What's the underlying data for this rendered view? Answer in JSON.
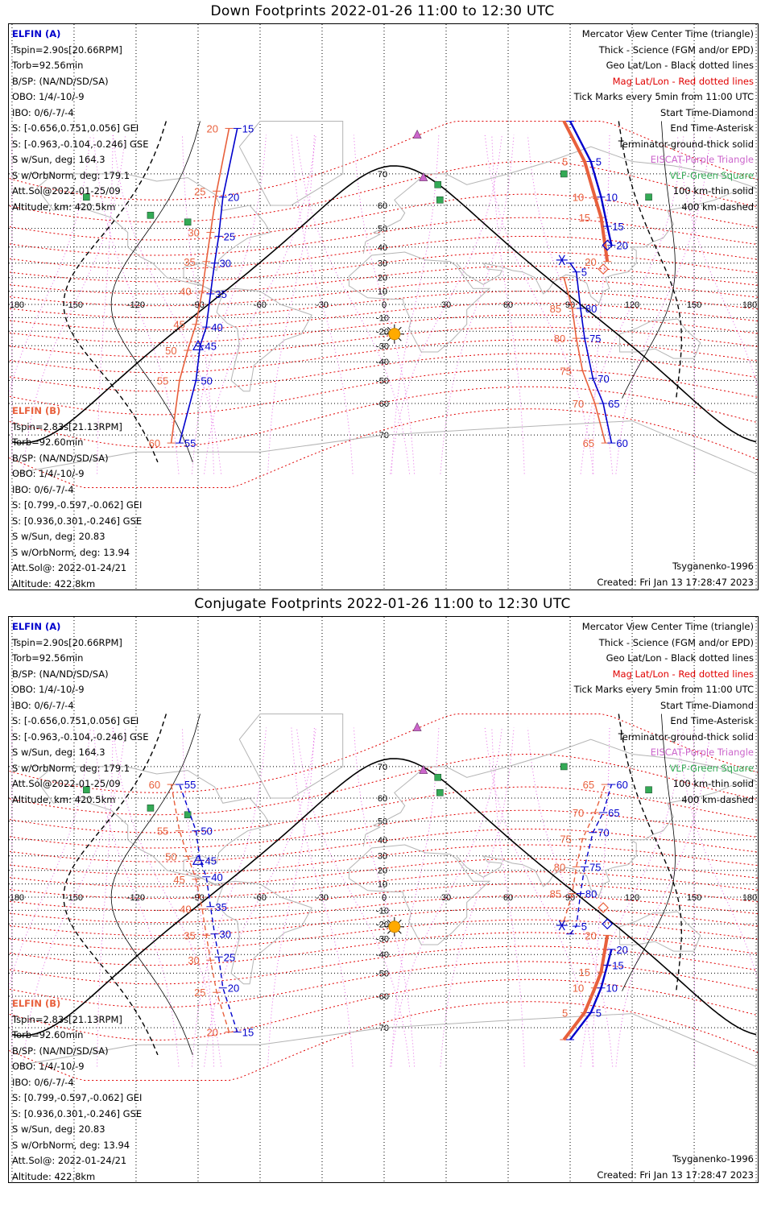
{
  "panels": [
    {
      "title": "Down Footprints 2022-01-26 11:00 to 12:30 UTC",
      "mode": "down"
    },
    {
      "title": "Conjugate Footprints 2022-01-26 11:00 to 12:30 UTC",
      "mode": "conjugate"
    }
  ],
  "elfin_a": {
    "name": "ELFIN (A)",
    "color": "#0000cc",
    "lines": [
      "Tspin=2.90s[20.66RPM]",
      "Torb=92.56min",
      "B/SP: (NA/ND/SD/SA)",
      "OBO: 1/4/-10/-9",
      "IBO: 0/6/-7/-4",
      "S: [-0.656,0.751,0.056] GEI",
      "S: [-0.963,-0.104,-0.246] GSE",
      "S w/Sun, deg: 164.3",
      "S w/OrbNorm, deg: 179.1",
      "Att.Sol@2022-01-25/09",
      "Altitude, km: 420.5km"
    ]
  },
  "elfin_b": {
    "name": "ELFIN (B)",
    "color": "#e8603c",
    "lines": [
      "Tspin=2.83s[21.13RPM]",
      "Torb=92.60min",
      "B/SP: (NA/ND/SD/SA)",
      "OBO: 1/4/-10/-9",
      "IBO: 0/6/-7/-4",
      "S: [0.799,-0.597,-0.062] GEI",
      "S: [0.936,0.301,-0.246] GSE",
      "S w/Sun, deg: 20.83",
      "S w/OrbNorm, deg: 13.94",
      "Att.Sol@: 2022-01-24/21",
      "Altitude: 422.8km"
    ]
  },
  "legend": [
    {
      "text": "Mercator View Center Time (triangle)",
      "style": "black"
    },
    {
      "text": "Thick - Science (FGM and/or EPD)",
      "style": "black"
    },
    {
      "text": "Geo Lat/Lon - Black dotted lines",
      "style": "black"
    },
    {
      "text": "Mag Lat/Lon - Red dotted lines",
      "style": "red"
    },
    {
      "text": "Tick Marks every 5min from 11:00 UTC",
      "style": "black"
    },
    {
      "text": "Start Time-Diamond",
      "style": "black"
    },
    {
      "text": "End Time-Asterisk",
      "style": "black"
    },
    {
      "text": "Terminator-ground-thick solid",
      "style": "black"
    },
    {
      "text": "EISCAT-Purple Triangle",
      "style": "purple"
    },
    {
      "text": "VLF-Green Square",
      "style": "green"
    },
    {
      "text": "100 km-thin solid",
      "style": "black"
    },
    {
      "text": "400 km-dashed",
      "style": "black"
    }
  ],
  "footer": {
    "model": "Tsyganenko-1996",
    "created": "Created: Fri Jan 13 17:28:47 2023"
  },
  "axes": {
    "lon_ticks": [
      -180,
      -150,
      -120,
      -90,
      -60,
      -30,
      0,
      30,
      60,
      90,
      120,
      150,
      180
    ],
    "lon_tick_labels": [
      "180",
      "-150",
      "-120",
      "-90",
      "-60",
      "-30",
      "0",
      "30",
      "60",
      "90",
      "120",
      "150",
      "180"
    ],
    "lat_ticks": [
      70,
      60,
      50,
      40,
      30,
      20,
      10,
      -10,
      -20,
      -30,
      -40,
      -50,
      -60,
      -70
    ]
  },
  "colors": {
    "elfin_a": "#0000cc",
    "elfin_b": "#e8603c",
    "mag_grid": "#e00000",
    "geo_grid": "#000000",
    "coast": "#b4b4b4",
    "eiscat": "#cc66cc",
    "vlf": "#33aa55",
    "sun": "#ffaa00"
  },
  "sun": {
    "lon": 5,
    "lat": -22
  },
  "eiscat_sites": [
    {
      "lon": 16,
      "lat": 78
    },
    {
      "lon": 19,
      "lat": 69
    }
  ],
  "vlf_sites": [
    {
      "lon": 26,
      "lat": 67
    },
    {
      "lon": 27,
      "lat": 62
    },
    {
      "lon": 87,
      "lat": 70
    },
    {
      "lon": 128,
      "lat": 63
    },
    {
      "lon": -144,
      "lat": 63
    },
    {
      "lon": -113,
      "lat": 56
    },
    {
      "lon": -95,
      "lat": 53
    }
  ],
  "tracks": {
    "down": {
      "a_left": [
        {
          "m": 15,
          "lon": -71,
          "lat": 79
        },
        {
          "m": 20,
          "lon": -78,
          "lat": 63
        },
        {
          "m": 25,
          "lon": -80,
          "lat": 46
        },
        {
          "m": 30,
          "lon": -82,
          "lat": 30
        },
        {
          "m": 35,
          "lon": -84,
          "lat": 8
        },
        {
          "m": 40,
          "lon": -86,
          "lat": -17
        },
        {
          "m": 45,
          "lon": -89,
          "lat": -30
        },
        {
          "m": 50,
          "lon": -91,
          "lat": -50
        },
        {
          "m": 55,
          "lon": -99,
          "lat": -72
        }
      ],
      "b_left": [
        {
          "m": 20,
          "lon": -75,
          "lat": 79
        },
        {
          "m": 25,
          "lon": -81,
          "lat": 65
        },
        {
          "m": 30,
          "lon": -84,
          "lat": 48
        },
        {
          "m": 35,
          "lon": -86,
          "lat": 31
        },
        {
          "m": 40,
          "lon": -88,
          "lat": 10
        },
        {
          "m": 45,
          "lon": -91,
          "lat": -15
        },
        {
          "m": 50,
          "lon": -95,
          "lat": -33
        },
        {
          "m": 55,
          "lon": -99,
          "lat": -50
        },
        {
          "m": 60,
          "lon": -103,
          "lat": -72
        }
      ],
      "a_right": [
        {
          "m": 0,
          "lon": 90,
          "lat": 30
        },
        {
          "m": 5,
          "lon": 93,
          "lat": 24
        },
        {
          "m": 80,
          "lon": 95,
          "lat": -3
        },
        {
          "m": 75,
          "lon": 97,
          "lat": -25
        },
        {
          "m": 70,
          "lon": 101,
          "lat": -49
        },
        {
          "m": 65,
          "lon": 106,
          "lat": -60
        },
        {
          "m": 60,
          "lon": 110,
          "lat": -72
        }
      ],
      "a_right_upper": [
        {
          "m": 0,
          "lon": 90,
          "lat": 81
        },
        {
          "m": 5,
          "lon": 100,
          "lat": 73
        },
        {
          "m": 10,
          "lon": 105,
          "lat": 63
        },
        {
          "m": 15,
          "lon": 108,
          "lat": 51
        },
        {
          "m": 20,
          "lon": 110,
          "lat": 41
        }
      ],
      "b_right": [
        {
          "m": 0,
          "lon": 87,
          "lat": 20
        },
        {
          "m": 85,
          "lon": 91,
          "lat": -3
        },
        {
          "m": 80,
          "lon": 93,
          "lat": -25
        },
        {
          "m": 75,
          "lon": 96,
          "lat": -45
        },
        {
          "m": 70,
          "lon": 102,
          "lat": -60
        },
        {
          "m": 65,
          "lon": 107,
          "lat": -72
        }
      ],
      "b_right_upper": [
        {
          "m": 0,
          "lon": 87,
          "lat": 81
        },
        {
          "m": 5,
          "lon": 97,
          "lat": 73
        },
        {
          "m": 10,
          "lon": 102,
          "lat": 63
        },
        {
          "m": 15,
          "lon": 105,
          "lat": 55
        },
        {
          "m": 20,
          "lon": 108,
          "lat": 31
        }
      ]
    }
  }
}
